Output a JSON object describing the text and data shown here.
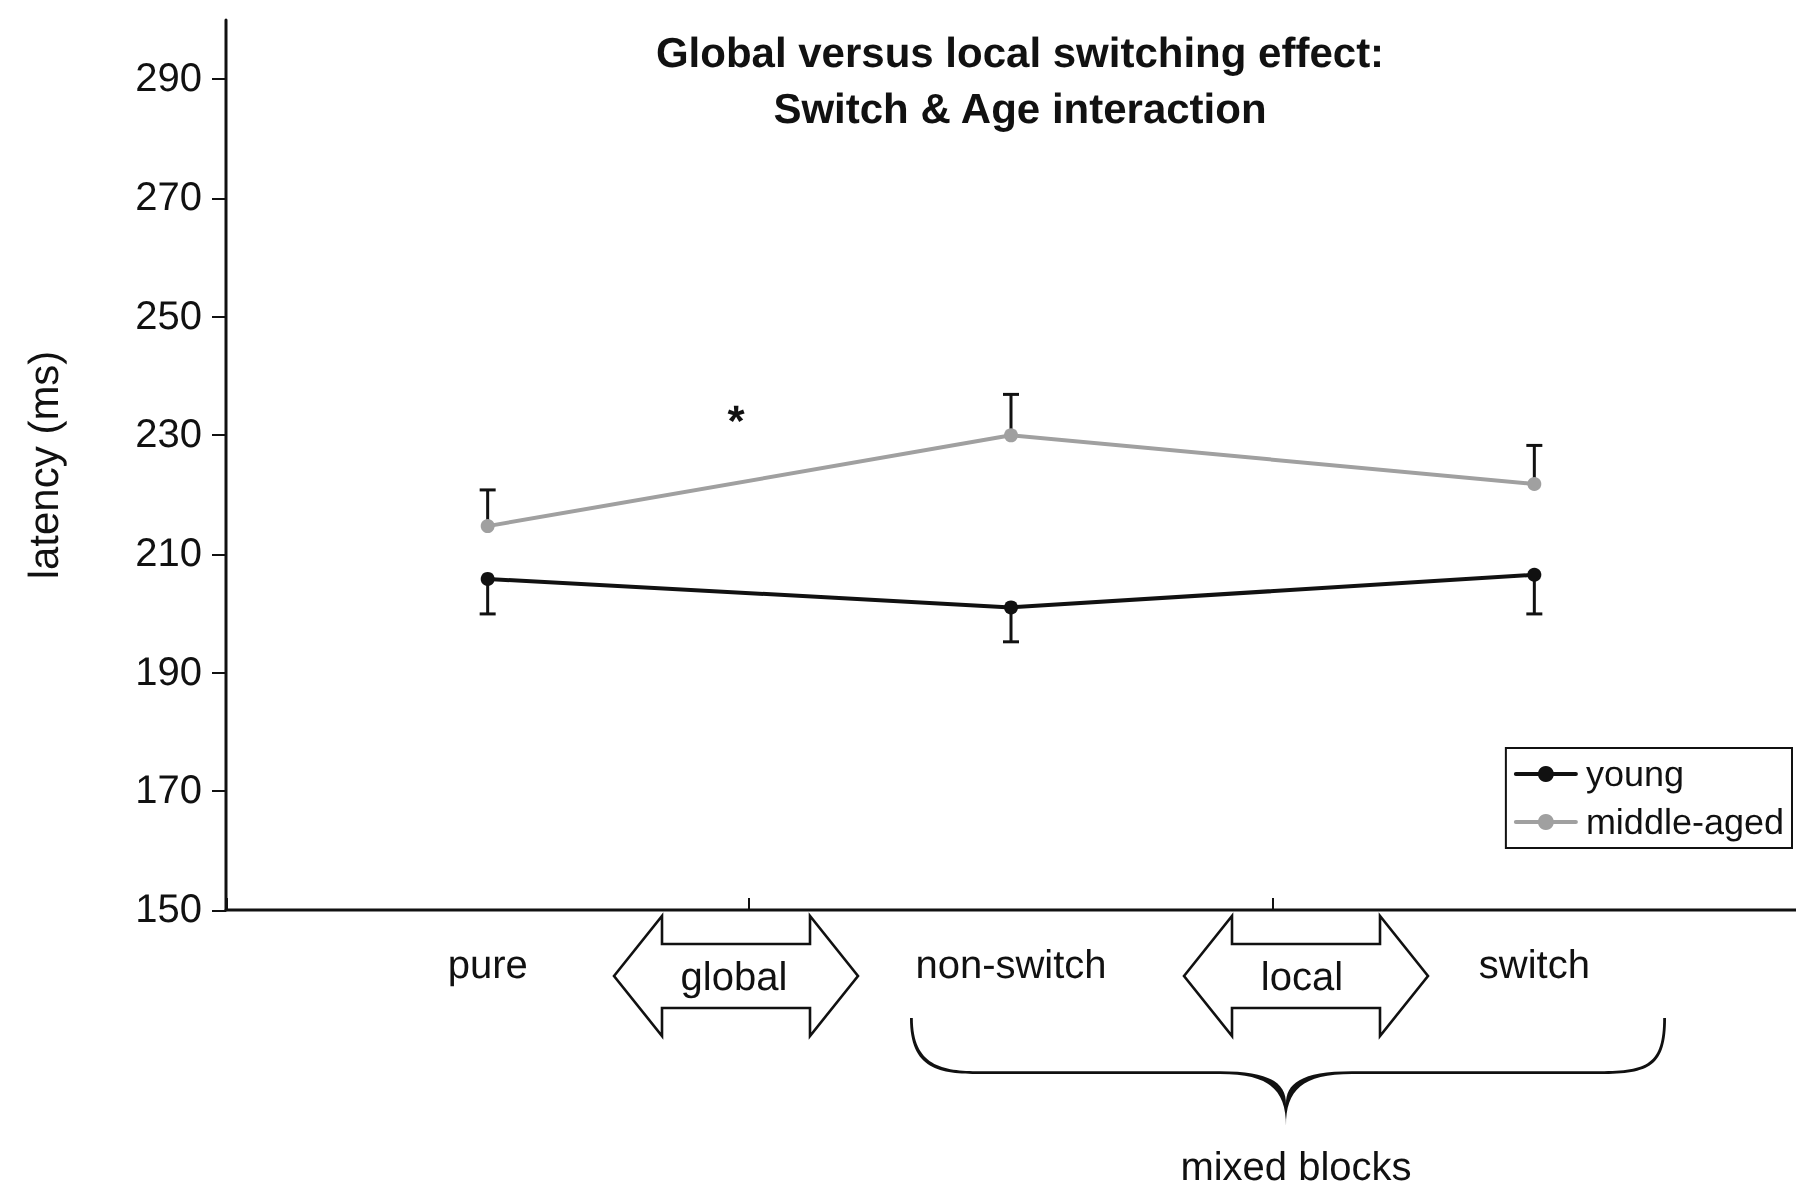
{
  "chart_data": {
    "type": "line",
    "title": "Global versus local switching effect:\nSwitch & Age interaction",
    "ylabel": "latency (ms)",
    "categories": [
      "pure",
      "non-switch",
      "switch"
    ],
    "series": [
      {
        "name": "young",
        "color": "#111111",
        "values": [
          205.8,
          201,
          206.5
        ],
        "errors": [
          [
            199.9,
            205.8
          ],
          [
            195.2,
            201
          ],
          [
            199.9,
            206.5
          ]
        ]
      },
      {
        "name": "middle-aged",
        "color": "#a0a0a0",
        "values": [
          214.7,
          230,
          221.8
        ],
        "errors": [
          [
            214.7,
            220.8
          ],
          [
            230,
            236.9
          ],
          [
            221.8,
            228.3
          ]
        ]
      }
    ],
    "ylim": [
      150,
      300
    ],
    "yticks": [
      150,
      170,
      190,
      210,
      230,
      250,
      270,
      290
    ],
    "grid": false,
    "legend": "bottom right",
    "marker": "circle",
    "line_style": "solid",
    "annotations": [
      "*",
      "global",
      "local",
      "mixed blocks"
    ]
  }
}
